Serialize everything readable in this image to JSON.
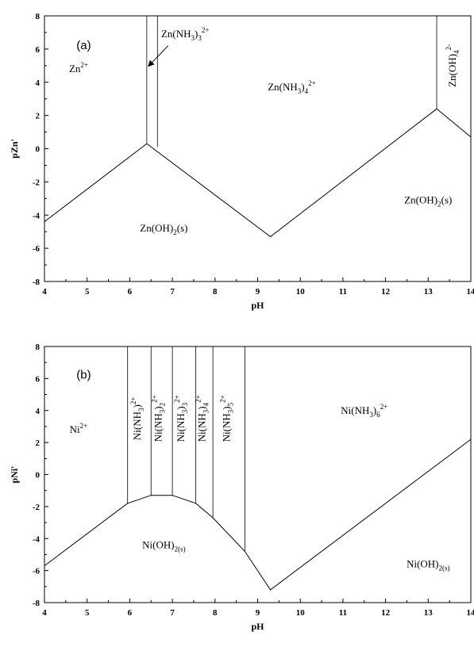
{
  "chart_data": [
    {
      "type": "line",
      "panel_label": "(a)",
      "xlabel": "pH",
      "ylabel": "pZn'",
      "xlim": [
        4,
        14
      ],
      "ylim": [
        -8,
        8
      ],
      "x_ticks": [
        "4",
        "5",
        "6",
        "7",
        "8",
        "9",
        "10",
        "11",
        "12",
        "13",
        "14"
      ],
      "y_ticks": [
        "8",
        "6",
        "4",
        "2",
        "0",
        "-2",
        "-4",
        "-6",
        "-8"
      ],
      "series": [
        {
          "points": [
            [
              4,
              -4.4
            ],
            [
              6.4,
              0.3
            ],
            [
              9.3,
              -5.3
            ],
            [
              13.2,
              2.4
            ],
            [
              14,
              0.7
            ]
          ]
        }
      ],
      "vertical_boundaries": [
        {
          "x": 6.4,
          "y_from": 0.3,
          "y_to": 8
        },
        {
          "x": 6.65,
          "y_from": 0.1,
          "y_to": 8
        },
        {
          "x": 13.2,
          "y_from": 2.4,
          "y_to": 8
        }
      ],
      "regions": [
        {
          "x": 4.8,
          "y": 4.6,
          "parts": [
            [
              "Zn",
              ""
            ],
            [
              "2+",
              "sup"
            ]
          ]
        },
        {
          "x": 7.3,
          "y": 6.7,
          "parts": [
            [
              "Zn(NH",
              ""
            ],
            [
              "3",
              "sub"
            ],
            [
              ")",
              ""
            ],
            [
              "3",
              "sub"
            ],
            [
              "2+",
              "sup"
            ]
          ]
        },
        {
          "x": 9.8,
          "y": 3.5,
          "parts": [
            [
              "Zn(NH",
              ""
            ],
            [
              "3",
              "sub"
            ],
            [
              ")",
              ""
            ],
            [
              "4",
              "sub"
            ],
            [
              "2+",
              "sup"
            ]
          ]
        },
        {
          "x": 6.8,
          "y": -5.0,
          "parts": [
            [
              "Zn(OH)",
              ""
            ],
            [
              "2",
              "sub"
            ],
            [
              "(s)",
              ""
            ]
          ]
        },
        {
          "x": 13.0,
          "y": -3.3,
          "parts": [
            [
              "Zn(OH)",
              ""
            ],
            [
              "2",
              "sub"
            ],
            [
              "(s)",
              ""
            ]
          ]
        },
        {
          "x": 13.65,
          "y": 5.0,
          "rotate": -90,
          "parts": [
            [
              "Zn(OH)",
              ""
            ],
            [
              "4",
              "sub"
            ],
            [
              "2-",
              "sup"
            ]
          ]
        }
      ],
      "arrow": {
        "from": [
          6.9,
          6.2
        ],
        "to": [
          6.45,
          5.0
        ]
      }
    },
    {
      "type": "line",
      "panel_label": "(b)",
      "xlabel": "pH",
      "ylabel": "pNi'",
      "xlim": [
        4,
        14
      ],
      "ylim": [
        -8,
        8
      ],
      "x_ticks": [
        "4",
        "5",
        "6",
        "7",
        "8",
        "9",
        "10",
        "11",
        "12",
        "13",
        "14"
      ],
      "y_ticks": [
        "8",
        "6",
        "4",
        "2",
        "0",
        "-2",
        "-4",
        "-6",
        "-8"
      ],
      "series": [
        {
          "points": [
            [
              4,
              -5.7
            ],
            [
              5.95,
              -1.8
            ],
            [
              6.5,
              -1.3
            ],
            [
              7.0,
              -1.3
            ],
            [
              7.55,
              -1.8
            ],
            [
              7.95,
              -2.7
            ],
            [
              8.7,
              -4.8
            ],
            [
              9.3,
              -7.2
            ],
            [
              14,
              2.2
            ]
          ]
        }
      ],
      "vertical_boundaries": [
        {
          "x": 5.95,
          "y_from": -1.8,
          "y_to": 8
        },
        {
          "x": 6.5,
          "y_from": -1.3,
          "y_to": 8
        },
        {
          "x": 7.0,
          "y_from": -1.3,
          "y_to": 8
        },
        {
          "x": 7.55,
          "y_from": -1.8,
          "y_to": 8
        },
        {
          "x": 7.95,
          "y_from": -2.7,
          "y_to": 8
        },
        {
          "x": 8.7,
          "y_from": -4.8,
          "y_to": 8
        }
      ],
      "regions": [
        {
          "x": 4.8,
          "y": 2.6,
          "parts": [
            [
              "Ni",
              ""
            ],
            [
              "2+",
              "sup"
            ]
          ]
        },
        {
          "x": 6.25,
          "y": 3.5,
          "rotate": -90,
          "parts": [
            [
              "Ni(NH",
              ""
            ],
            [
              "3",
              "sub"
            ],
            [
              ")",
              ""
            ],
            [
              "2+",
              "sup"
            ]
          ]
        },
        {
          "x": 6.75,
          "y": 3.5,
          "rotate": -90,
          "parts": [
            [
              "Ni(NH",
              ""
            ],
            [
              "3",
              "sub"
            ],
            [
              ")",
              ""
            ],
            [
              "2",
              "sub"
            ],
            [
              "2+",
              "sup"
            ]
          ]
        },
        {
          "x": 7.28,
          "y": 3.5,
          "rotate": -90,
          "parts": [
            [
              "Ni(NH",
              ""
            ],
            [
              "3",
              "sub"
            ],
            [
              ")",
              ""
            ],
            [
              "3",
              "sub"
            ],
            [
              "2+",
              "sup"
            ]
          ]
        },
        {
          "x": 7.77,
          "y": 3.5,
          "rotate": -90,
          "parts": [
            [
              "Ni(NH",
              ""
            ],
            [
              "3",
              "sub"
            ],
            [
              ")",
              ""
            ],
            [
              "4",
              "sub"
            ],
            [
              "2+",
              "sup"
            ]
          ]
        },
        {
          "x": 8.35,
          "y": 3.5,
          "rotate": -90,
          "parts": [
            [
              "Ni(NH",
              ""
            ],
            [
              "3",
              "sub"
            ],
            [
              ")",
              ""
            ],
            [
              "5",
              "sub"
            ],
            [
              "2+",
              "sup"
            ]
          ]
        },
        {
          "x": 11.5,
          "y": 3.8,
          "parts": [
            [
              "Ni(NH",
              ""
            ],
            [
              "3",
              "sub"
            ],
            [
              ")",
              ""
            ],
            [
              "6",
              "sub"
            ],
            [
              "2+",
              "sup"
            ]
          ]
        },
        {
          "x": 6.8,
          "y": -4.6,
          "parts": [
            [
              "Ni(OH)",
              ""
            ],
            [
              "2(s)",
              "sub"
            ]
          ]
        },
        {
          "x": 13.0,
          "y": -5.8,
          "parts": [
            [
              "Ni(OH)",
              ""
            ],
            [
              "2(s)",
              "sub"
            ]
          ]
        }
      ]
    }
  ]
}
